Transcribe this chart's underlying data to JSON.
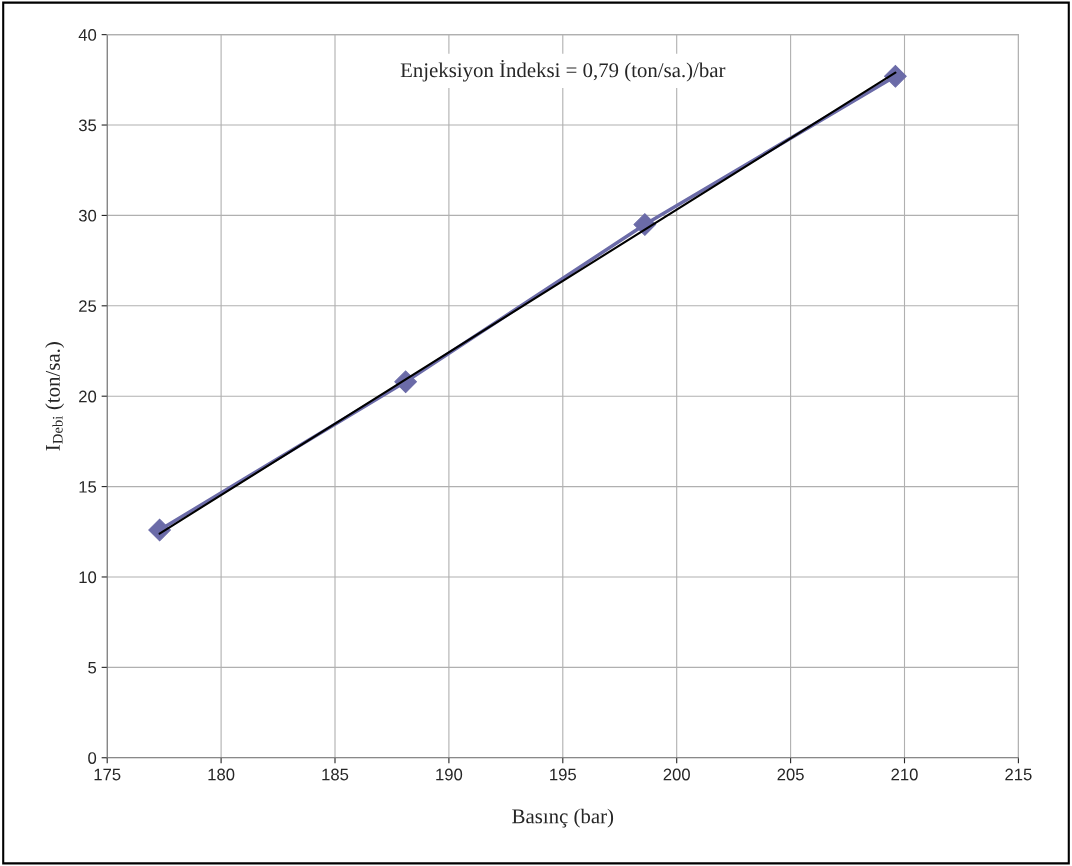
{
  "chart_data": {
    "type": "line",
    "xlabel": "Basınç (bar)",
    "ylabel": "I$_{Debi}$ (ton/sa.)",
    "annotations": [
      "Enjeksiyon İndeksi = 0,79 (ton/sa.)/bar"
    ],
    "x": [
      177.3,
      188.1,
      198.6,
      209.6
    ],
    "series": [
      {
        "color": "#6b6ba8",
        "marker": "diamond",
        "values": [
          12.6,
          20.8,
          29.5,
          37.7
        ]
      },
      {
        "color": "#000000",
        "marker": "none",
        "x": [
          177.3,
          209.6
        ],
        "values": [
          12.4,
          37.9
        ]
      }
    ],
    "xlim": [
      175,
      215
    ],
    "xticks": [
      175,
      180,
      185,
      190,
      195,
      200,
      205,
      210,
      215
    ],
    "ylim": [
      0,
      40
    ],
    "yticks": [
      0,
      5,
      10,
      15,
      20,
      25,
      30,
      35,
      40
    ],
    "grid": true,
    "legend": false
  }
}
